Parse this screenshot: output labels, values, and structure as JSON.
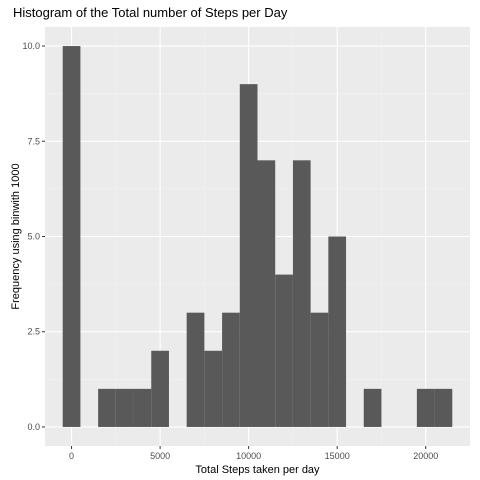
{
  "chart_data": {
    "type": "bar",
    "title": "Histogram of the Total number of Steps per Day",
    "xlabel": "Total Steps taken per day",
    "ylabel": "Frequency using binwith 1000",
    "binwidth": 1000,
    "xlim": [
      -1500,
      22500
    ],
    "ylim": [
      -0.5,
      10.5
    ],
    "x_ticks": [
      0,
      5000,
      10000,
      15000,
      20000
    ],
    "x_tick_labels": [
      "0",
      "5000",
      "10000",
      "15000",
      "20000"
    ],
    "y_ticks": [
      0,
      2.5,
      5,
      7.5,
      10
    ],
    "y_tick_labels": [
      "0.0",
      "2.5",
      "5.0",
      "7.5",
      "10.0"
    ],
    "bins": [
      {
        "center": 0,
        "count": 10
      },
      {
        "center": 2000,
        "count": 1
      },
      {
        "center": 3000,
        "count": 1
      },
      {
        "center": 4000,
        "count": 1
      },
      {
        "center": 5000,
        "count": 2
      },
      {
        "center": 7000,
        "count": 3
      },
      {
        "center": 8000,
        "count": 2
      },
      {
        "center": 9000,
        "count": 3
      },
      {
        "center": 10000,
        "count": 9
      },
      {
        "center": 11000,
        "count": 7
      },
      {
        "center": 12000,
        "count": 4
      },
      {
        "center": 13000,
        "count": 7
      },
      {
        "center": 14000,
        "count": 3
      },
      {
        "center": 15000,
        "count": 5
      },
      {
        "center": 17000,
        "count": 1
      },
      {
        "center": 20000,
        "count": 1
      },
      {
        "center": 21000,
        "count": 1
      }
    ],
    "grid": true,
    "colors": {
      "bar": "#595959",
      "panel_background": "#ebebeb",
      "grid_major": "#ffffff",
      "grid_minor": "#f2f2f2"
    }
  }
}
